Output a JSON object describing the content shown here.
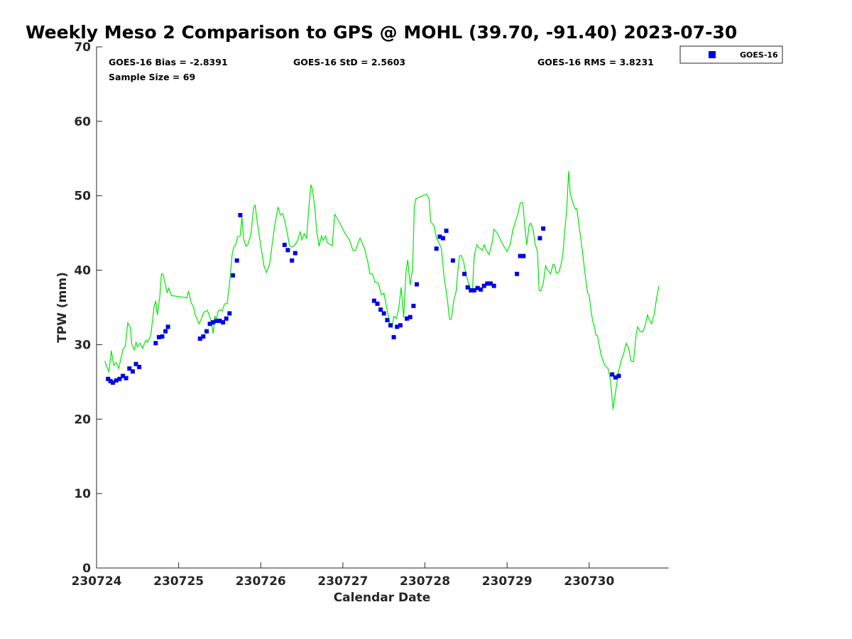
{
  "colors": {
    "gps_line": "#00e600",
    "goes_marker": "#0000e6",
    "axis": "#262626"
  },
  "stats": {
    "bias": "GOES-16 Bias = -2.8391",
    "std": "GOES-16 StD = 2.5603",
    "rms": "GOES-16 RMS = 3.8231",
    "sample": "Sample Size = 69"
  },
  "chart_data": {
    "type": "scatter",
    "title": "Weekly Meso 2 Comparison to GPS @ MOHL (39.70, -91.40) 2023-07-30",
    "xlabel": "Calendar Date",
    "ylabel": "TPW (mm)",
    "xlim": [
      0,
      6.97
    ],
    "ylim": [
      0,
      70
    ],
    "xticks": [
      0,
      1,
      2,
      3,
      4,
      5,
      6
    ],
    "xtick_labels": [
      "230724",
      "230725",
      "230726",
      "230727",
      "230728",
      "230729",
      "230730"
    ],
    "yticks": [
      0,
      10,
      20,
      30,
      40,
      50,
      60,
      70
    ],
    "ytick_labels": [
      "0",
      "10",
      "20",
      "30",
      "40",
      "50",
      "60",
      "70"
    ],
    "legend": {
      "label": "GOES-16",
      "position": "top-right-outside"
    },
    "series": [
      {
        "name": "GPS",
        "kind": "line",
        "points": [
          [
            0.1,
            27.8
          ],
          [
            0.15,
            26.3
          ],
          [
            0.18,
            29.2
          ],
          [
            0.21,
            27.2
          ],
          [
            0.24,
            27.6
          ],
          [
            0.27,
            26.8
          ],
          [
            0.32,
            29.3
          ],
          [
            0.35,
            29.8
          ],
          [
            0.38,
            32.9
          ],
          [
            0.41,
            32.4
          ],
          [
            0.43,
            30.0
          ],
          [
            0.46,
            29.3
          ],
          [
            0.48,
            30.3
          ],
          [
            0.5,
            29.7
          ],
          [
            0.53,
            30.2
          ],
          [
            0.56,
            29.5
          ],
          [
            0.6,
            30.6
          ],
          [
            0.62,
            30.3
          ],
          [
            0.66,
            31.2
          ],
          [
            0.7,
            35.0
          ],
          [
            0.72,
            35.9
          ],
          [
            0.74,
            34.0
          ],
          [
            0.77,
            36.4
          ],
          [
            0.79,
            39.5
          ],
          [
            0.81,
            39.4
          ],
          [
            0.86,
            37.0
          ],
          [
            0.88,
            37.6
          ],
          [
            0.91,
            36.6
          ],
          [
            1.1,
            36.3
          ],
          [
            1.12,
            37.2
          ],
          [
            1.15,
            35.7
          ],
          [
            1.18,
            35.1
          ],
          [
            1.2,
            34.0
          ],
          [
            1.25,
            32.8
          ],
          [
            1.31,
            34.4
          ],
          [
            1.35,
            34.6
          ],
          [
            1.39,
            33.4
          ],
          [
            1.42,
            31.5
          ],
          [
            1.44,
            33.8
          ],
          [
            1.46,
            33.5
          ],
          [
            1.48,
            34.4
          ],
          [
            1.5,
            34.7
          ],
          [
            1.53,
            34.5
          ],
          [
            1.56,
            35.5
          ],
          [
            1.59,
            35.5
          ],
          [
            1.63,
            39.3
          ],
          [
            1.65,
            42.0
          ],
          [
            1.67,
            43.1
          ],
          [
            1.69,
            43.3
          ],
          [
            1.72,
            44.5
          ],
          [
            1.75,
            44.6
          ],
          [
            1.77,
            47.2
          ],
          [
            1.79,
            44.2
          ],
          [
            1.82,
            43.2
          ],
          [
            1.84,
            43.4
          ],
          [
            1.88,
            44.8
          ],
          [
            1.91,
            48.2
          ],
          [
            1.93,
            48.8
          ],
          [
            1.96,
            46.2
          ],
          [
            2.0,
            43.3
          ],
          [
            2.04,
            40.5
          ],
          [
            2.07,
            39.7
          ],
          [
            2.11,
            40.9
          ],
          [
            2.14,
            43.6
          ],
          [
            2.17,
            46.0
          ],
          [
            2.21,
            48.5
          ],
          [
            2.24,
            47.4
          ],
          [
            2.27,
            47.6
          ],
          [
            2.3,
            46.2
          ],
          [
            2.32,
            45.1
          ],
          [
            2.35,
            43.3
          ],
          [
            2.38,
            43.1
          ],
          [
            2.41,
            43.3
          ],
          [
            2.45,
            44.0
          ],
          [
            2.48,
            45.2
          ],
          [
            2.5,
            44.1
          ],
          [
            2.53,
            44.9
          ],
          [
            2.56,
            44.3
          ],
          [
            2.58,
            47.6
          ],
          [
            2.61,
            51.5
          ],
          [
            2.63,
            50.8
          ],
          [
            2.66,
            48.2
          ],
          [
            2.68,
            45.4
          ],
          [
            2.71,
            43.2
          ],
          [
            2.74,
            44.6
          ],
          [
            2.76,
            44.0
          ],
          [
            2.79,
            44.6
          ],
          [
            2.81,
            43.7
          ],
          [
            2.84,
            43.5
          ],
          [
            2.87,
            43.3
          ],
          [
            2.9,
            47.5
          ],
          [
            2.93,
            47.0
          ],
          [
            2.97,
            46.2
          ],
          [
            3.0,
            45.5
          ],
          [
            3.04,
            44.7
          ],
          [
            3.08,
            44.1
          ],
          [
            3.12,
            42.7
          ],
          [
            3.15,
            42.6
          ],
          [
            3.19,
            43.8
          ],
          [
            3.21,
            44.3
          ],
          [
            3.24,
            43.5
          ],
          [
            3.27,
            42.7
          ],
          [
            3.3,
            41.3
          ],
          [
            3.33,
            39.5
          ],
          [
            3.36,
            39.5
          ],
          [
            3.39,
            38.4
          ],
          [
            3.43,
            38.3
          ],
          [
            3.45,
            37.5
          ],
          [
            3.47,
            36.7
          ],
          [
            3.5,
            36.9
          ],
          [
            3.53,
            35.2
          ],
          [
            3.57,
            33.0
          ],
          [
            3.6,
            32.3
          ],
          [
            3.62,
            33.8
          ],
          [
            3.65,
            33.5
          ],
          [
            3.68,
            34.8
          ],
          [
            3.71,
            37.7
          ],
          [
            3.74,
            33.6
          ],
          [
            3.77,
            40.0
          ],
          [
            3.79,
            41.4
          ],
          [
            3.82,
            38.0
          ],
          [
            3.85,
            40.2
          ],
          [
            3.87,
            48.4
          ],
          [
            3.89,
            49.6
          ],
          [
            3.93,
            49.8
          ],
          [
            3.97,
            50.0
          ],
          [
            4.02,
            50.2
          ],
          [
            4.05,
            49.6
          ],
          [
            4.07,
            46.5
          ],
          [
            4.11,
            46.0
          ],
          [
            4.14,
            44.3
          ],
          [
            4.17,
            43.7
          ],
          [
            4.2,
            42.9
          ],
          [
            4.23,
            39.3
          ],
          [
            4.27,
            36.3
          ],
          [
            4.3,
            33.4
          ],
          [
            4.32,
            33.4
          ],
          [
            4.35,
            35.9
          ],
          [
            4.38,
            37.2
          ],
          [
            4.4,
            39.8
          ],
          [
            4.42,
            41.9
          ],
          [
            4.44,
            42.0
          ],
          [
            4.47,
            41.2
          ],
          [
            4.5,
            39.4
          ],
          [
            4.53,
            38.3
          ],
          [
            4.56,
            37.3
          ],
          [
            4.58,
            37.6
          ],
          [
            4.6,
            41.9
          ],
          [
            4.63,
            43.4
          ],
          [
            4.66,
            43.0
          ],
          [
            4.7,
            42.7
          ],
          [
            4.72,
            43.4
          ],
          [
            4.75,
            42.6
          ],
          [
            4.78,
            42.1
          ],
          [
            4.82,
            43.8
          ],
          [
            4.84,
            45.5
          ],
          [
            4.88,
            45.0
          ],
          [
            4.92,
            44.1
          ],
          [
            4.96,
            43.2
          ],
          [
            5.0,
            42.5
          ],
          [
            5.04,
            43.5
          ],
          [
            5.07,
            45.4
          ],
          [
            5.1,
            46.5
          ],
          [
            5.13,
            47.5
          ],
          [
            5.16,
            49.0
          ],
          [
            5.19,
            49.1
          ],
          [
            5.22,
            45.5
          ],
          [
            5.24,
            43.4
          ],
          [
            5.27,
            46.1
          ],
          [
            5.29,
            46.3
          ],
          [
            5.32,
            45.3
          ],
          [
            5.34,
            43.6
          ],
          [
            5.37,
            42.5
          ],
          [
            5.39,
            37.3
          ],
          [
            5.41,
            37.2
          ],
          [
            5.44,
            38.2
          ],
          [
            5.47,
            40.6
          ],
          [
            5.49,
            40.1
          ],
          [
            5.53,
            39.5
          ],
          [
            5.56,
            40.8
          ],
          [
            5.58,
            40.7
          ],
          [
            5.6,
            39.6
          ],
          [
            5.63,
            39.7
          ],
          [
            5.66,
            40.9
          ],
          [
            5.68,
            42.2
          ],
          [
            5.7,
            44.8
          ],
          [
            5.73,
            48.8
          ],
          [
            5.75,
            53.3
          ],
          [
            5.77,
            50.3
          ],
          [
            5.8,
            49.1
          ],
          [
            5.83,
            48.2
          ],
          [
            5.85,
            48.3
          ],
          [
            5.87,
            46.5
          ],
          [
            5.9,
            44.0
          ],
          [
            5.93,
            41.4
          ],
          [
            5.96,
            38.6
          ],
          [
            5.98,
            37.0
          ],
          [
            6.0,
            36.6
          ],
          [
            6.02,
            34.8
          ],
          [
            6.04,
            33.3
          ],
          [
            6.06,
            32.6
          ],
          [
            6.08,
            31.3
          ],
          [
            6.1,
            31.2
          ],
          [
            6.12,
            30.0
          ],
          [
            6.15,
            28.4
          ],
          [
            6.19,
            27.2
          ],
          [
            6.23,
            26.8
          ],
          [
            6.26,
            25.2
          ],
          [
            6.29,
            21.3
          ],
          [
            6.33,
            24.3
          ],
          [
            6.36,
            26.5
          ],
          [
            6.39,
            27.9
          ],
          [
            6.42,
            28.8
          ],
          [
            6.45,
            30.2
          ],
          [
            6.48,
            29.6
          ],
          [
            6.51,
            27.8
          ],
          [
            6.54,
            27.7
          ],
          [
            6.57,
            31.1
          ],
          [
            6.59,
            32.4
          ],
          [
            6.62,
            31.8
          ],
          [
            6.65,
            31.7
          ],
          [
            6.68,
            32.5
          ],
          [
            6.71,
            34.0
          ],
          [
            6.73,
            33.4
          ],
          [
            6.76,
            32.8
          ],
          [
            6.79,
            34.0
          ],
          [
            6.82,
            36.2
          ],
          [
            6.85,
            37.9
          ]
        ]
      },
      {
        "name": "GOES-16",
        "kind": "scatter",
        "points": [
          [
            0.14,
            25.4
          ],
          [
            0.17,
            25.1
          ],
          [
            0.2,
            24.9
          ],
          [
            0.24,
            25.2
          ],
          [
            0.28,
            25.4
          ],
          [
            0.32,
            25.8
          ],
          [
            0.36,
            25.5
          ],
          [
            0.4,
            26.8
          ],
          [
            0.44,
            26.4
          ],
          [
            0.48,
            27.4
          ],
          [
            0.52,
            27.0
          ],
          [
            0.72,
            30.2
          ],
          [
            0.76,
            31.0
          ],
          [
            0.8,
            31.1
          ],
          [
            0.84,
            31.8
          ],
          [
            0.87,
            32.4
          ],
          [
            1.26,
            30.8
          ],
          [
            1.3,
            31.1
          ],
          [
            1.34,
            31.8
          ],
          [
            1.38,
            32.8
          ],
          [
            1.42,
            33.0
          ],
          [
            1.46,
            33.2
          ],
          [
            1.5,
            33.2
          ],
          [
            1.54,
            33.0
          ],
          [
            1.58,
            33.5
          ],
          [
            1.62,
            34.2
          ],
          [
            1.66,
            39.3
          ],
          [
            1.71,
            41.3
          ],
          [
            1.75,
            47.4
          ],
          [
            2.29,
            43.4
          ],
          [
            2.33,
            42.7
          ],
          [
            2.38,
            41.3
          ],
          [
            2.42,
            42.3
          ],
          [
            3.38,
            35.9
          ],
          [
            3.42,
            35.5
          ],
          [
            3.46,
            34.7
          ],
          [
            3.5,
            34.2
          ],
          [
            3.54,
            33.3
          ],
          [
            3.58,
            32.6
          ],
          [
            3.62,
            31.0
          ],
          [
            3.66,
            32.4
          ],
          [
            3.7,
            32.6
          ],
          [
            3.78,
            33.5
          ],
          [
            3.82,
            33.7
          ],
          [
            3.86,
            35.2
          ],
          [
            3.9,
            38.1
          ],
          [
            4.14,
            42.9
          ],
          [
            4.18,
            44.5
          ],
          [
            4.22,
            44.3
          ],
          [
            4.26,
            45.3
          ],
          [
            4.34,
            41.3
          ],
          [
            4.48,
            39.5
          ],
          [
            4.52,
            37.7
          ],
          [
            4.56,
            37.3
          ],
          [
            4.6,
            37.3
          ],
          [
            4.64,
            37.6
          ],
          [
            4.68,
            37.4
          ],
          [
            4.72,
            37.9
          ],
          [
            4.76,
            38.2
          ],
          [
            4.8,
            38.2
          ],
          [
            4.84,
            37.9
          ],
          [
            5.12,
            39.5
          ],
          [
            5.16,
            41.9
          ],
          [
            5.2,
            41.9
          ],
          [
            5.4,
            44.3
          ],
          [
            5.44,
            45.6
          ],
          [
            6.28,
            26.0
          ],
          [
            6.32,
            25.6
          ],
          [
            6.36,
            25.8
          ]
        ]
      }
    ]
  }
}
